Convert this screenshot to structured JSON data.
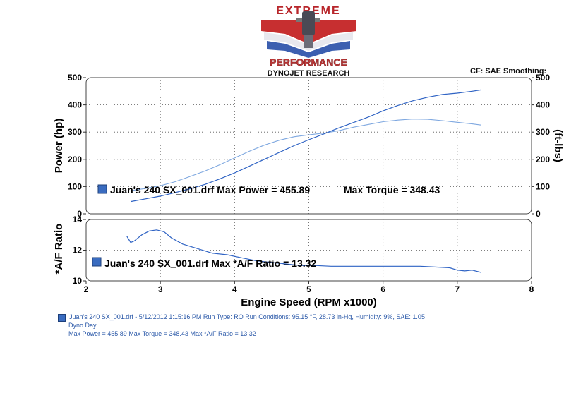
{
  "logo": {
    "top_text": "EXTREME",
    "main_text": "PERFORMANCE",
    "sub_text": "DYNOJET RESEARCH"
  },
  "header_right": "CF: SAE  Smoothing:",
  "chart_data": [
    {
      "type": "line",
      "title": "",
      "xlabel": "Engine Speed (RPM x1000)",
      "ylabel": "Power (hp)",
      "ylabel_right": "(ft-lbs)",
      "xlim": [
        2,
        8
      ],
      "ylim": [
        0,
        500
      ],
      "xticks": [
        "2",
        "3",
        "4",
        "5",
        "6",
        "7",
        "8"
      ],
      "yticks": [
        "0",
        "100",
        "200",
        "300",
        "400",
        "500"
      ],
      "yticks_right": [
        "0",
        "100",
        "200",
        "300",
        "400",
        "500"
      ],
      "grid": true,
      "legend_text": "Juan's 240 SX_001.drf Max Power = 455.89",
      "legend_text_2": "Max Torque = 348.43",
      "series": [
        {
          "x": [
            2.6,
            2.8,
            3.0,
            3.2,
            3.4,
            3.6,
            3.8,
            4.0,
            4.2,
            4.4,
            4.6,
            4.8,
            5.0,
            5.2,
            5.4,
            5.6,
            5.8,
            6.0,
            6.2,
            6.4,
            6.6,
            6.8,
            7.0,
            7.2,
            7.32
          ],
          "values": [
            45,
            55,
            65,
            78,
            92,
            108,
            128,
            150,
            175,
            200,
            225,
            250,
            272,
            293,
            315,
            335,
            355,
            378,
            398,
            415,
            428,
            438,
            443,
            450,
            455
          ],
          "color": "#2f63c4"
        },
        {
          "x": [
            2.6,
            2.8,
            3.0,
            3.2,
            3.4,
            3.6,
            3.8,
            4.0,
            4.2,
            4.4,
            4.6,
            4.8,
            5.0,
            5.2,
            5.4,
            5.6,
            5.8,
            6.0,
            6.2,
            6.4,
            6.6,
            6.8,
            7.0,
            7.2,
            7.32
          ],
          "values": [
            85,
            93,
            103,
            118,
            137,
            157,
            180,
            205,
            230,
            252,
            270,
            283,
            290,
            296,
            305,
            318,
            328,
            338,
            344,
            348,
            347,
            342,
            336,
            330,
            326
          ],
          "color": "#7fa8e0"
        }
      ]
    },
    {
      "type": "line",
      "title": "",
      "xlabel": "Engine Speed (RPM x1000)",
      "ylabel": "*A/F Ratio",
      "xlim": [
        2,
        8
      ],
      "ylim": [
        10,
        14
      ],
      "xticks": [
        "2",
        "3",
        "4",
        "5",
        "6",
        "7",
        "8"
      ],
      "yticks": [
        "10",
        "12",
        "14"
      ],
      "grid": true,
      "legend_text": "Juan's 240 SX_001.drf Max *A/F Ratio = 13.32",
      "series": [
        {
          "x": [
            2.55,
            2.6,
            2.65,
            2.75,
            2.85,
            2.95,
            3.05,
            3.15,
            3.3,
            3.5,
            3.7,
            3.9,
            4.1,
            4.3,
            4.5,
            4.7,
            4.9,
            5.1,
            5.3,
            5.5,
            5.7,
            5.9,
            6.1,
            6.3,
            6.5,
            6.7,
            6.9,
            7.0,
            7.1,
            7.2,
            7.32
          ],
          "values": [
            12.9,
            12.5,
            12.6,
            13.0,
            13.25,
            13.32,
            13.2,
            12.8,
            12.4,
            12.1,
            11.8,
            11.7,
            11.5,
            11.3,
            11.2,
            11.1,
            11.0,
            11.0,
            10.95,
            10.95,
            10.95,
            10.95,
            10.95,
            10.95,
            10.95,
            10.9,
            10.85,
            10.7,
            10.65,
            10.7,
            10.55
          ],
          "color": "#2f63c4"
        }
      ]
    }
  ],
  "footer": {
    "line1": "Juan's 240 SX_001.drf - 5/12/2012 1:15:16 PM  Run Type: RO  Run Conditions: 95.15 °F, 28.73 in-Hg,  Humidity:  9%, SAE: 1.05",
    "line2": "Dyno Day",
    "line3": "Max Power = 455.89  Max Torque = 348.43  Max *A/F Ratio = 13.32"
  },
  "colors": {
    "power": "#2f63c4",
    "torque": "#7fa8e0",
    "afr": "#2f63c4",
    "legend_square": "#3a6cc0",
    "footer_text": "#2a58a8"
  }
}
